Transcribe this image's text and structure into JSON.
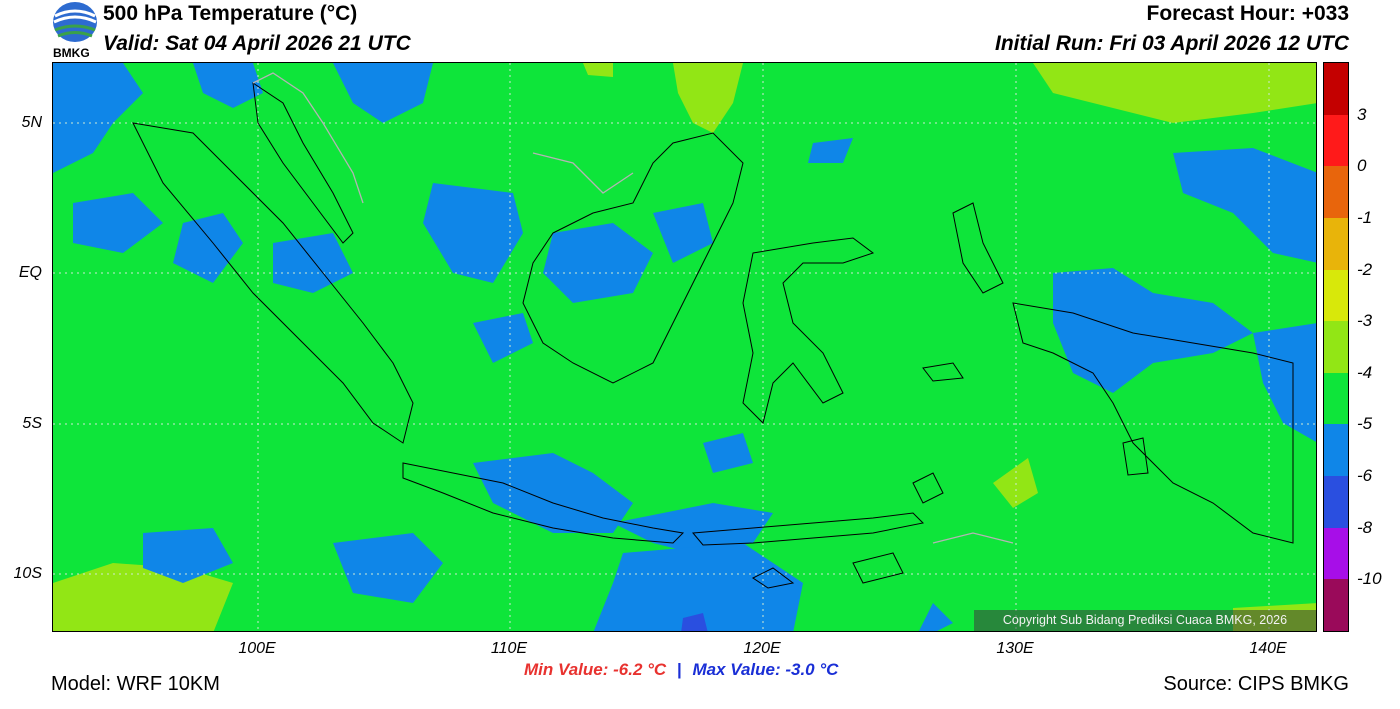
{
  "header": {
    "title": "500 hPa Temperature (°C)",
    "valid": "Valid: Sat 04 April 2026 21 UTC",
    "forecast_hour": "Forecast Hour: +033",
    "initial_run": "Initial Run: Fri 03 April 2026 12 UTC"
  },
  "logo": {
    "text": "BMKG",
    "icon": "bmkg-logo"
  },
  "map": {
    "lat_labels": [
      "5N",
      "EQ",
      "5S",
      "10S"
    ],
    "lon_labels": [
      "100E",
      "110E",
      "120E",
      "130E",
      "140E"
    ],
    "copyright": "Copyright Sub Bidang Prediksi Cuaca BMKG, 2026"
  },
  "colorbar": {
    "labels": [
      "3",
      "0",
      "-1",
      "-2",
      "-3",
      "-4",
      "-5",
      "-6",
      "-8",
      "-10"
    ],
    "colors": [
      "#c40000",
      "#ff1a1a",
      "#e8650c",
      "#e8b40a",
      "#d8e80a",
      "#92e615",
      "#0ee53a",
      "#0f86e8",
      "#2a4fe0",
      "#a70ee8",
      "#9a0a5a"
    ]
  },
  "stats": {
    "min": "Min Value: -6.2 °C",
    "separator": "|",
    "max": "Max Value: -3.0 °C"
  },
  "footer": {
    "model": "Model: WRF 10KM",
    "source": "Source: CIPS BMKG"
  }
}
